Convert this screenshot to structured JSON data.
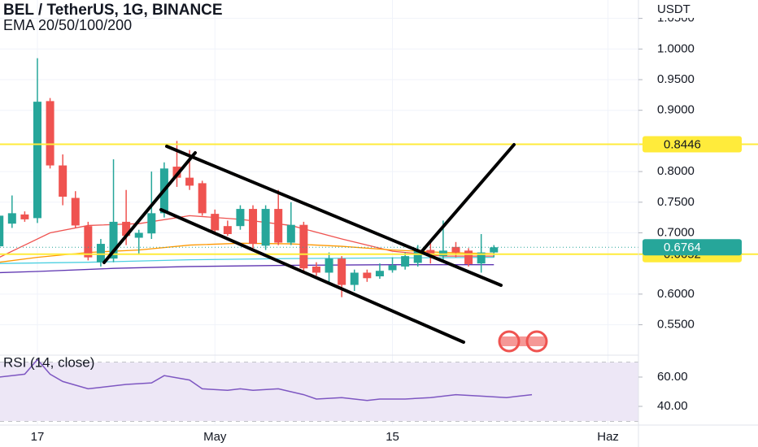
{
  "chart_data": [
    {
      "type": "candlestick",
      "title": "BEL / TetherUS, 1G, BINANCE",
      "subtitle": "EMA 20/50/100/200",
      "currency": "USDT",
      "x": [
        -3,
        -2,
        -1,
        0,
        1,
        2,
        3,
        4,
        5,
        6,
        7,
        8,
        9,
        10,
        11,
        12,
        13,
        14,
        15,
        16,
        17,
        18,
        19,
        20,
        21,
        22,
        23,
        24,
        25,
        26,
        27,
        28,
        29,
        30,
        31,
        32,
        33,
        34,
        35,
        36
      ],
      "open": [
        0.678,
        0.715,
        0.73,
        0.724,
        0.915,
        0.81,
        0.757,
        0.711,
        0.652,
        0.658,
        0.718,
        0.692,
        0.699,
        0.732,
        0.808,
        0.79,
        0.781,
        0.731,
        0.711,
        0.711,
        0.739,
        0.679,
        0.739,
        0.684,
        0.713,
        0.645,
        0.635,
        0.658,
        0.615,
        0.635,
        0.629,
        0.639,
        0.645,
        0.651,
        0.672,
        0.662,
        0.677,
        0.671,
        0.65,
        0.668
      ],
      "high": [
        0.741,
        0.761,
        0.735,
        0.985,
        0.92,
        0.828,
        0.768,
        0.718,
        0.69,
        0.82,
        0.77,
        0.705,
        0.8,
        0.815,
        0.85,
        0.835,
        0.785,
        0.738,
        0.72,
        0.745,
        0.745,
        0.745,
        0.77,
        0.75,
        0.718,
        0.652,
        0.668,
        0.662,
        0.64,
        0.64,
        0.65,
        0.66,
        0.668,
        0.68,
        0.685,
        0.72,
        0.685,
        0.675,
        0.698,
        0.68
      ],
      "low": [
        0.675,
        0.708,
        0.718,
        0.716,
        0.805,
        0.745,
        0.708,
        0.655,
        0.645,
        0.652,
        0.68,
        0.665,
        0.69,
        0.725,
        0.775,
        0.77,
        0.728,
        0.7,
        0.695,
        0.705,
        0.675,
        0.672,
        0.68,
        0.68,
        0.635,
        0.63,
        0.615,
        0.595,
        0.605,
        0.62,
        0.625,
        0.635,
        0.64,
        0.645,
        0.65,
        0.655,
        0.66,
        0.645,
        0.635,
        0.66
      ],
      "close": [
        0.728,
        0.732,
        0.722,
        0.914,
        0.81,
        0.759,
        0.712,
        0.66,
        0.682,
        0.718,
        0.695,
        0.7,
        0.732,
        0.805,
        0.79,
        0.777,
        0.732,
        0.704,
        0.698,
        0.739,
        0.682,
        0.739,
        0.684,
        0.713,
        0.642,
        0.635,
        0.658,
        0.615,
        0.635,
        0.626,
        0.638,
        0.647,
        0.662,
        0.671,
        0.662,
        0.671,
        0.668,
        0.649,
        0.668,
        0.6764
      ],
      "up_color": "#26a69a",
      "down_color": "#ef5350",
      "overlays": [
        {
          "color": "#ef5350",
          "x": [
            -3,
            -1,
            1,
            4,
            8,
            12,
            16,
            20,
            24,
            28,
            32,
            36
          ],
          "values": [
            0.66,
            0.68,
            0.7,
            0.712,
            0.715,
            0.728,
            0.722,
            0.712,
            0.69,
            0.67,
            0.662,
            0.662
          ]
        },
        {
          "color": "#ff9800",
          "x": [
            -3,
            0,
            4,
            8,
            12,
            16,
            20,
            24,
            28,
            32,
            36
          ],
          "values": [
            0.652,
            0.66,
            0.668,
            0.672,
            0.68,
            0.683,
            0.682,
            0.678,
            0.672,
            0.668,
            0.666
          ]
        },
        {
          "color": "#4dd0e1",
          "x": [
            -3,
            4,
            12,
            20,
            28,
            36
          ],
          "values": [
            0.65,
            0.652,
            0.656,
            0.658,
            0.659,
            0.66
          ]
        },
        {
          "color": "#5e35b1",
          "x": [
            -3,
            0,
            6,
            12,
            20,
            28,
            36
          ],
          "values": [
            0.635,
            0.637,
            0.642,
            0.645,
            0.647,
            0.648,
            0.648
          ]
        }
      ],
      "price_lines": [
        {
          "value": 0.8446,
          "color": "#ffeb3b"
        },
        {
          "value": 0.6652,
          "color": "#ffeb3b"
        }
      ],
      "last_color": "#26a69a",
      "xlim": [
        -2.95,
        47.4
      ],
      "xticks": [
        {
          "value": 0,
          "label": "17"
        },
        {
          "value": 14,
          "label": "May"
        },
        {
          "value": 28,
          "label": "15"
        },
        {
          "value": 45,
          "label": "Haz"
        }
      ],
      "ylim": [
        0.503,
        1.08
      ],
      "yticks": [
        {
          "value": 1.05,
          "label": "1.0500"
        },
        {
          "value": 1,
          "label": "1.0000"
        },
        {
          "value": 0.95,
          "label": "0.9500"
        },
        {
          "value": 0.9,
          "label": "0.9000"
        },
        {
          "value": 0.8,
          "label": "0.8000"
        },
        {
          "value": 0.75,
          "label": "0.7500"
        },
        {
          "value": 0.7,
          "label": "0.7000"
        },
        {
          "value": 0.6,
          "label": "0.6000"
        },
        {
          "value": 0.55,
          "label": "0.5500"
        }
      ],
      "grid": true
    },
    {
      "type": "line",
      "title": "RSI (14, close)",
      "color": "#7e57c2",
      "x": [
        -3,
        -1,
        0,
        1,
        2,
        4,
        5,
        7,
        9,
        10,
        12,
        13,
        15,
        16,
        17,
        19,
        21,
        22,
        24,
        26,
        27,
        29,
        31,
        33,
        35,
        37,
        39
      ],
      "values": [
        60,
        62,
        72,
        62,
        57,
        52,
        53,
        55,
        56,
        61,
        58,
        52,
        51,
        52,
        51,
        52,
        48,
        45,
        46,
        44,
        45,
        45,
        46,
        48,
        47,
        46,
        48
      ],
      "bands": [
        70,
        50,
        30
      ],
      "band_fill": "#ede7f6",
      "ylim": [
        27.8,
        73.3
      ],
      "yticks": [
        {
          "value": 60,
          "label": "60.00"
        },
        {
          "value": 40,
          "label": "40.00"
        }
      ]
    }
  ]
}
